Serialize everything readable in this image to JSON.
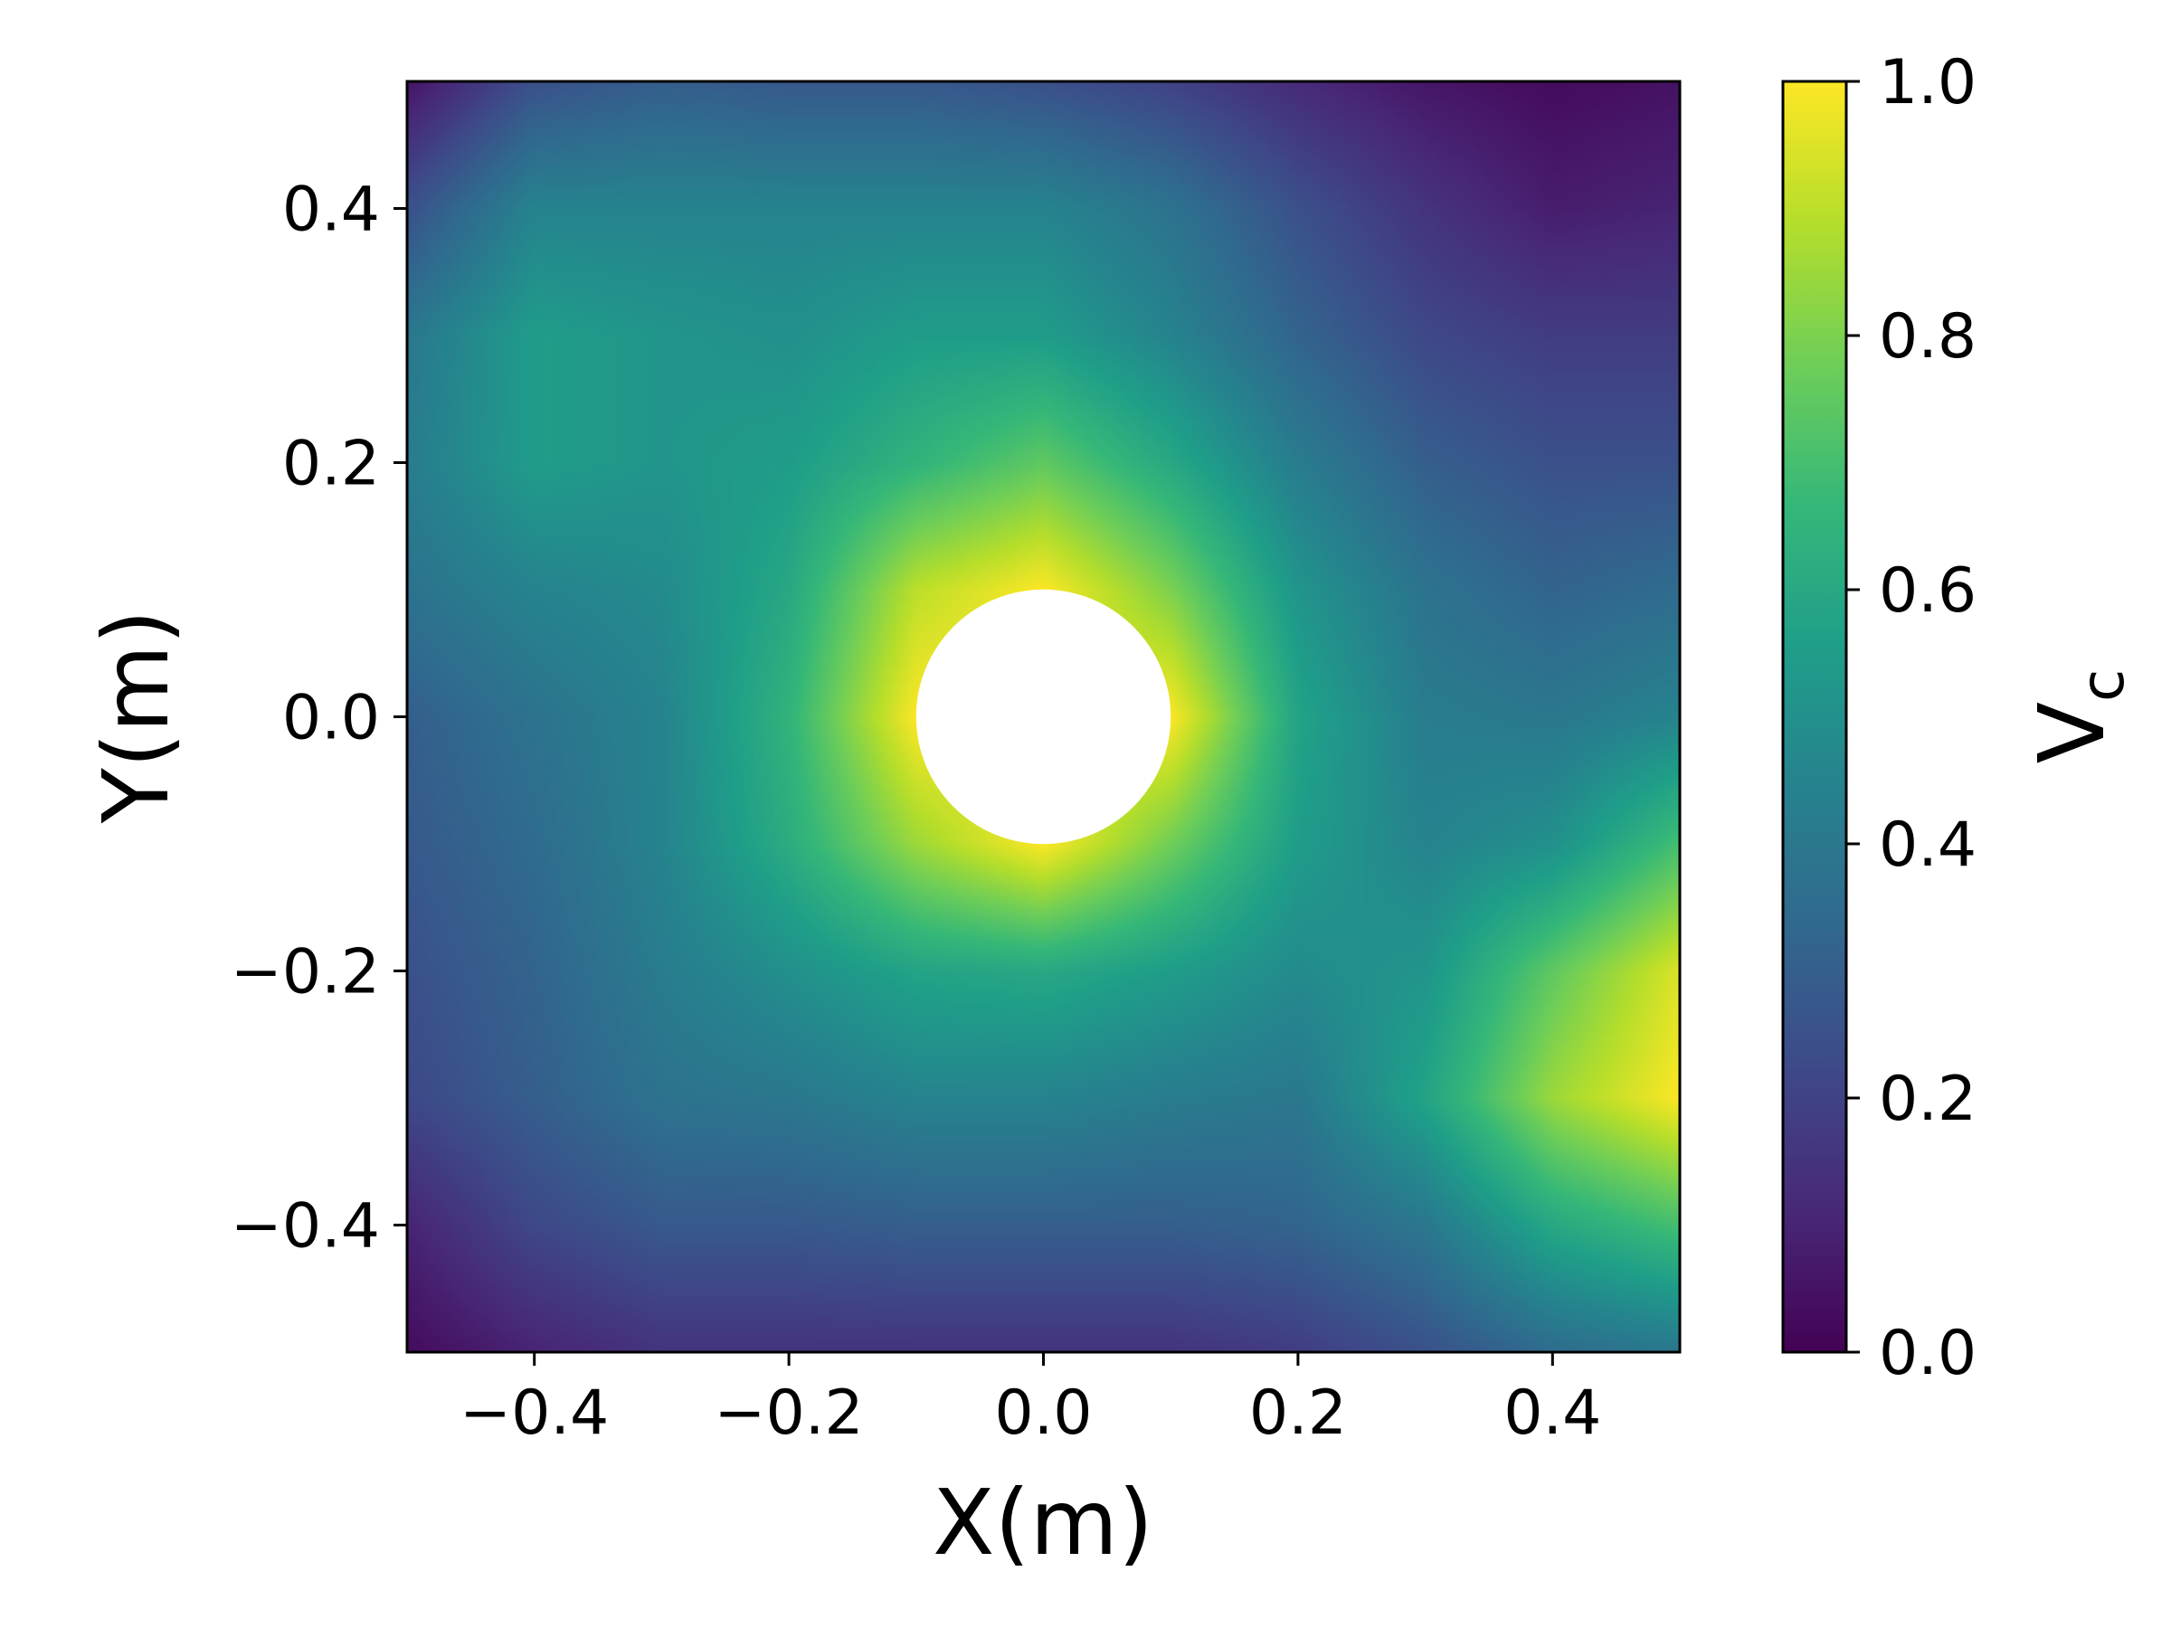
{
  "chart_data": {
    "type": "heatmap",
    "title": "",
    "xlabel": "X(m)",
    "ylabel": "Y(m)",
    "colorbar_label": "V",
    "colorbar_label_subscript": "c",
    "xlim": [
      -0.5,
      0.5
    ],
    "ylim": [
      -0.5,
      0.5
    ],
    "x_ticks": [
      -0.4,
      -0.2,
      0.0,
      0.2,
      0.4
    ],
    "x_tick_labels": [
      "−0.4",
      "−0.2",
      "0.0",
      "0.2",
      "0.4"
    ],
    "y_ticks": [
      -0.4,
      -0.2,
      0.0,
      0.2,
      0.4
    ],
    "y_tick_labels": [
      "−0.4",
      "−0.2",
      "0.0",
      "0.2",
      "0.4"
    ],
    "colorbar_range": [
      0.0,
      1.0
    ],
    "colorbar_ticks": [
      0.0,
      0.2,
      0.4,
      0.6,
      0.8,
      1.0
    ],
    "colorbar_tick_labels": [
      "0.0",
      "0.2",
      "0.4",
      "0.6",
      "0.8",
      "1.0"
    ],
    "colormap": "viridis",
    "colormap_stops": [
      "#440154",
      "#482878",
      "#3e4989",
      "#31688e",
      "#26828e",
      "#1f9e89",
      "#35b779",
      "#6ece58",
      "#b5de2b",
      "#fde725"
    ],
    "obstacle": {
      "shape": "circle",
      "center": [
        0.0,
        0.0
      ],
      "radius": 0.1,
      "fill": "#ffffff"
    },
    "grid": false,
    "legend": "none",
    "field_samples": {
      "x": [
        -0.5,
        -0.4,
        -0.3,
        -0.2,
        -0.1,
        0.0,
        0.1,
        0.2,
        0.3,
        0.4,
        0.5
      ],
      "y": [
        0.5,
        0.4,
        0.3,
        0.2,
        0.1,
        0.0,
        -0.1,
        -0.2,
        -0.3,
        -0.4,
        -0.5
      ],
      "values": [
        [
          0.05,
          0.25,
          0.3,
          0.28,
          0.28,
          0.25,
          0.2,
          0.12,
          0.06,
          0.03,
          0.05
        ],
        [
          0.25,
          0.45,
          0.45,
          0.45,
          0.45,
          0.45,
          0.38,
          0.25,
          0.15,
          0.08,
          0.1
        ],
        [
          0.4,
          0.55,
          0.52,
          0.5,
          0.55,
          0.55,
          0.45,
          0.32,
          0.22,
          0.18,
          0.18
        ],
        [
          0.42,
          0.55,
          0.52,
          0.55,
          0.65,
          0.75,
          0.6,
          0.42,
          0.3,
          0.25,
          0.25
        ],
        [
          0.38,
          0.45,
          0.48,
          0.6,
          0.9,
          1.0,
          0.8,
          0.52,
          0.38,
          0.32,
          0.35
        ],
        [
          0.3,
          0.38,
          0.45,
          0.65,
          1.0,
          1.0,
          1.0,
          0.58,
          0.42,
          0.4,
          0.45
        ],
        [
          0.28,
          0.35,
          0.45,
          0.62,
          0.85,
          1.0,
          0.78,
          0.55,
          0.45,
          0.5,
          0.7
        ],
        [
          0.25,
          0.32,
          0.42,
          0.5,
          0.58,
          0.6,
          0.55,
          0.48,
          0.52,
          0.75,
          0.95
        ],
        [
          0.22,
          0.3,
          0.38,
          0.4,
          0.45,
          0.45,
          0.42,
          0.4,
          0.58,
          0.85,
          1.0
        ],
        [
          0.1,
          0.22,
          0.28,
          0.28,
          0.3,
          0.3,
          0.3,
          0.32,
          0.4,
          0.6,
          0.7
        ],
        [
          0.03,
          0.1,
          0.15,
          0.15,
          0.15,
          0.15,
          0.15,
          0.18,
          0.25,
          0.35,
          0.4
        ]
      ]
    }
  }
}
